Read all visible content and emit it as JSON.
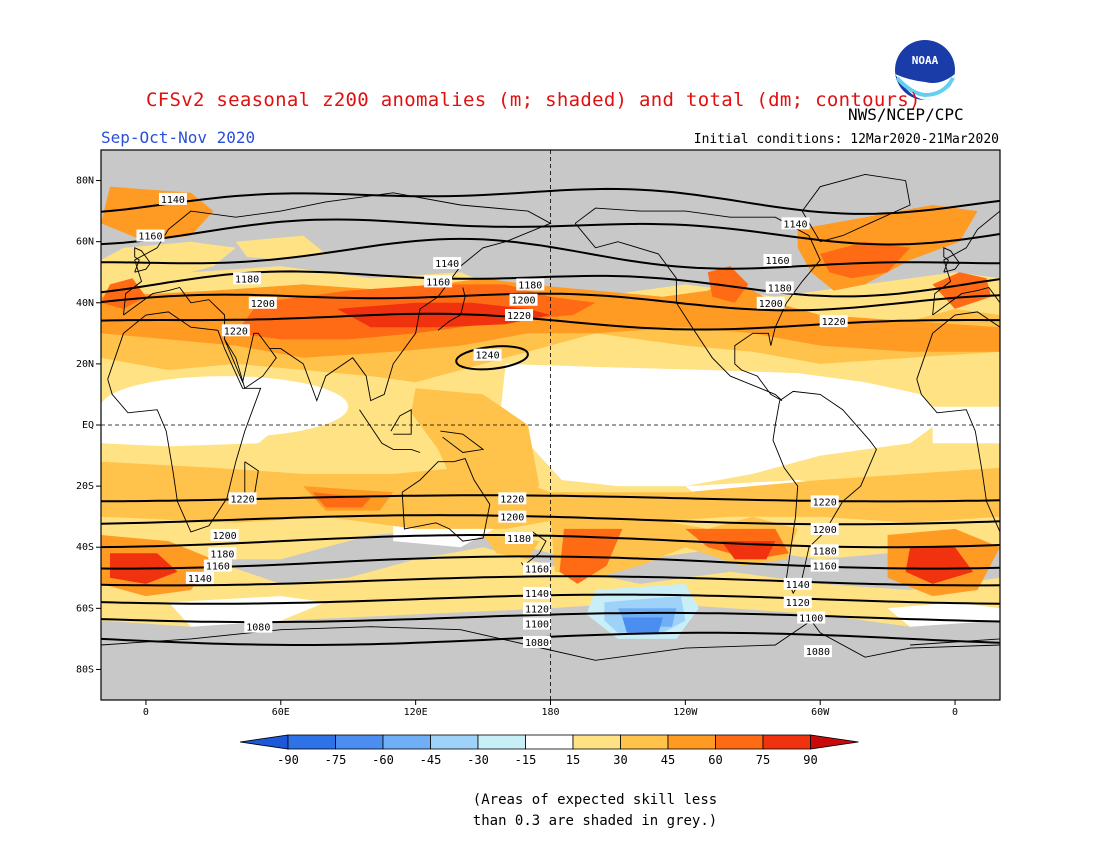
{
  "header": {
    "title": "CFSv2 seasonal z200 anomalies (m; shaded) and total (dm; contours)",
    "organization": "NWS/NCEP/CPC",
    "logo_text": "NOAA",
    "season": "Sep-Oct-Nov 2020",
    "initial_conditions": "Initial conditions: 12Mar2020-21Mar2020"
  },
  "map": {
    "lat_ticks": [
      {
        "value": 80,
        "label": "80N"
      },
      {
        "value": 60,
        "label": "60N"
      },
      {
        "value": 40,
        "label": "40N"
      },
      {
        "value": 20,
        "label": "20N"
      },
      {
        "value": 0,
        "label": "EQ"
      },
      {
        "value": -20,
        "label": "20S"
      },
      {
        "value": -40,
        "label": "40S"
      },
      {
        "value": -60,
        "label": "60S"
      },
      {
        "value": -80,
        "label": "80S"
      }
    ],
    "lon_ticks": [
      {
        "value": 0,
        "label": "0"
      },
      {
        "value": 60,
        "label": "60E"
      },
      {
        "value": 120,
        "label": "120E"
      },
      {
        "value": 180,
        "label": "180"
      },
      {
        "value": 240,
        "label": "120W"
      },
      {
        "value": 300,
        "label": "60W"
      },
      {
        "value": 360,
        "label": "0"
      }
    ],
    "grey_note": "grey = skill below 0.3",
    "colors": {
      "grey_skill": "#c8c8c8",
      "ocean_bg": "#c8c8c8",
      "coast": "#000000"
    }
  },
  "contours": [
    {
      "label": "1240",
      "label_lon": 152,
      "label_lat": 23
    },
    {
      "label": "1220",
      "label_lon": 40,
      "label_lat": 31
    },
    {
      "label": "1220",
      "label_lon": 166,
      "label_lat": 36
    },
    {
      "label": "1220",
      "label_lon": 306,
      "label_lat": 34
    },
    {
      "label": "1200",
      "label_lon": 52,
      "label_lat": 40
    },
    {
      "label": "1200",
      "label_lon": 168,
      "label_lat": 41
    },
    {
      "label": "1200",
      "label_lon": 278,
      "label_lat": 40
    },
    {
      "label": "1180",
      "label_lon": 45,
      "label_lat": 48
    },
    {
      "label": "1180",
      "label_lon": 171,
      "label_lat": 46
    },
    {
      "label": "1180",
      "label_lon": 282,
      "label_lat": 45
    },
    {
      "label": "1160",
      "label_lon": 2,
      "label_lat": 62
    },
    {
      "label": "1160",
      "label_lon": 130,
      "label_lat": 47
    },
    {
      "label": "1160",
      "label_lon": 281,
      "label_lat": 54
    },
    {
      "label": "1140",
      "label_lon": 12,
      "label_lat": 74
    },
    {
      "label": "1140",
      "label_lon": 134,
      "label_lat": 53
    },
    {
      "label": "1140",
      "label_lon": 289,
      "label_lat": 66
    },
    {
      "label": "1220",
      "label_lon": 43,
      "label_lat": -24
    },
    {
      "label": "1220",
      "label_lon": 163,
      "label_lat": -24
    },
    {
      "label": "1220",
      "label_lon": 302,
      "label_lat": -25
    },
    {
      "label": "1200",
      "label_lon": 35,
      "label_lat": -36
    },
    {
      "label": "1200",
      "label_lon": 163,
      "label_lat": -30
    },
    {
      "label": "1200",
      "label_lon": 302,
      "label_lat": -34
    },
    {
      "label": "1180",
      "label_lon": 34,
      "label_lat": -42
    },
    {
      "label": "1180",
      "label_lon": 166,
      "label_lat": -37
    },
    {
      "label": "1180",
      "label_lon": 302,
      "label_lat": -41
    },
    {
      "label": "1160",
      "label_lon": 32,
      "label_lat": -46
    },
    {
      "label": "1160",
      "label_lon": 174,
      "label_lat": -47
    },
    {
      "label": "1160",
      "label_lon": 302,
      "label_lat": -46
    },
    {
      "label": "1140",
      "label_lon": 24,
      "label_lat": -50
    },
    {
      "label": "1140",
      "label_lon": 174,
      "label_lat": -55
    },
    {
      "label": "1140",
      "label_lon": 290,
      "label_lat": -52
    },
    {
      "label": "1120",
      "label_lon": 174,
      "label_lat": -60
    },
    {
      "label": "1120",
      "label_lon": 290,
      "label_lat": -58
    },
    {
      "label": "1100",
      "label_lon": 174,
      "label_lat": -65
    },
    {
      "label": "1100",
      "label_lon": 296,
      "label_lat": -63
    },
    {
      "label": "1080",
      "label_lon": 50,
      "label_lat": -66
    },
    {
      "label": "1080",
      "label_lon": 174,
      "label_lat": -71
    },
    {
      "label": "1080",
      "label_lon": 299,
      "label_lat": -74
    }
  ],
  "colorbar": {
    "labels": [
      "-90",
      "-75",
      "-60",
      "-45",
      "-30",
      "-15",
      "15",
      "30",
      "45",
      "60",
      "75",
      "90"
    ],
    "colors": [
      "#1c58d8",
      "#2e72e8",
      "#4b8ef0",
      "#70aff5",
      "#9fd2f8",
      "#c8eef8",
      "#ffffff",
      "#ffe283",
      "#ffc24a",
      "#ff9a22",
      "#ff6a14",
      "#f0320e",
      "#c80a0a"
    ]
  },
  "footnote": {
    "line1": "(Areas of expected skill less",
    "line2": "than 0.3 are shaded in grey.)"
  }
}
